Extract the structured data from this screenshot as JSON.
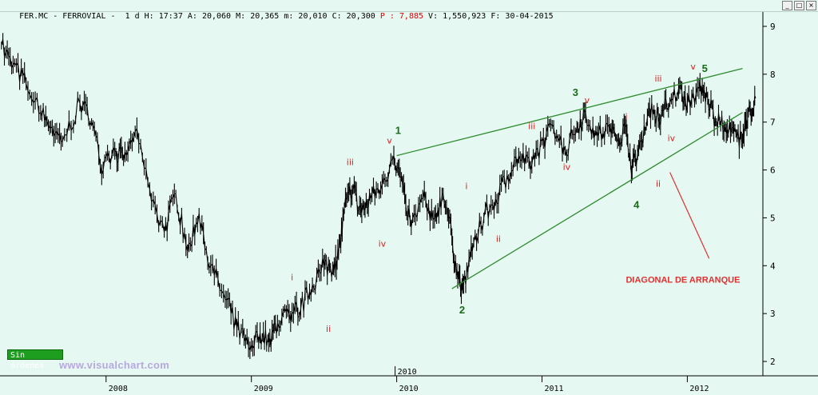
{
  "header": {
    "symbol": "FER.MC",
    "name": "FERROVIAL",
    "timeframe": "1 d",
    "time_label": "H:",
    "time": "17:37",
    "open_label": "A:",
    "open": "20,060",
    "high_label": "M:",
    "high": "20,365",
    "low_label": "m:",
    "low": "20,010",
    "close_label": "C:",
    "close": "20,300",
    "p_label": "P :",
    "p_value": "7,885",
    "volume_label": "V:",
    "volume": "1,550,923",
    "date_label": "F:",
    "date": "30-04-2015"
  },
  "window_buttons": [
    "_",
    "□",
    "×"
  ],
  "orders_badge": "Sin órdenes",
  "watermark": "www.visualchart.com",
  "colors": {
    "background": "#e6f8f2",
    "price": "#000000",
    "trendline": "#2e8b2e",
    "wave_major": "#1a6b1a",
    "wave_minor": "#e02020",
    "annotation_arrow": "#e03030"
  },
  "chart_data": {
    "type": "line",
    "title": "",
    "xlabel": "",
    "ylabel": "",
    "x_ticks": [
      "2008",
      "2009",
      "2010",
      "2011",
      "2012"
    ],
    "x_extra_label": "2010",
    "y_ticks": [
      2,
      3,
      4,
      5,
      6,
      7,
      8,
      9
    ],
    "ylim": [
      1.7,
      9.3
    ],
    "grid": false,
    "series": [
      {
        "values_x": [
          2007.28,
          2007.36,
          2007.45,
          2007.55,
          2007.62,
          2007.7,
          2007.82,
          2007.9,
          2007.98,
          2008.06,
          2008.12,
          2008.2,
          2008.3,
          2008.4,
          2008.48,
          2008.56,
          2008.64,
          2008.72,
          2008.82,
          2008.9,
          2008.98,
          2009.06,
          2009.12,
          2009.18,
          2009.26,
          2009.34,
          2009.42,
          2009.5,
          2009.56,
          2009.6,
          2009.64,
          2009.7,
          2009.76,
          2009.82,
          2009.9,
          2009.98,
          2010.04,
          2010.1,
          2010.18,
          2010.26,
          2010.32,
          2010.38,
          2010.42,
          2010.46,
          2010.52,
          2010.6,
          2010.68,
          2010.76,
          2010.84,
          2010.92,
          2011.0,
          2011.08,
          2011.16,
          2011.24,
          2011.3,
          2011.38,
          2011.46,
          2011.52,
          2011.58,
          2011.62,
          2011.68,
          2011.74,
          2011.8,
          2011.86,
          2011.94,
          2012.0,
          2012.08,
          2012.14,
          2012.2,
          2012.26,
          2012.32,
          2012.38,
          2012.42,
          2012.47
        ],
        "values_y": [
          8.6,
          8.2,
          7.8,
          7.2,
          6.9,
          6.6,
          7.4,
          7.0,
          6.0,
          6.4,
          6.2,
          6.8,
          5.6,
          4.7,
          5.5,
          4.3,
          5.1,
          4.0,
          3.3,
          2.7,
          2.3,
          2.6,
          2.4,
          2.8,
          3.0,
          3.1,
          3.6,
          4.0,
          3.95,
          4.2,
          5.2,
          5.6,
          5.1,
          5.4,
          5.7,
          6.3,
          5.7,
          4.8,
          5.4,
          5.0,
          5.5,
          4.6,
          3.7,
          3.6,
          4.3,
          5.0,
          5.4,
          5.9,
          6.3,
          6.0,
          6.6,
          6.9,
          6.4,
          6.9,
          7.2,
          6.7,
          6.9,
          6.6,
          6.9,
          6.0,
          6.6,
          7.3,
          7.1,
          7.3,
          7.7,
          7.4,
          7.7,
          7.5,
          7.0,
          6.9,
          6.8,
          6.6,
          7.2,
          7.5
        ]
      }
    ],
    "trendlines": [
      {
        "from": [
          2010.0,
          6.3
        ],
        "to": [
          2012.38,
          8.12
        ]
      },
      {
        "from": [
          2010.38,
          3.52
        ],
        "to": [
          2012.38,
          7.2
        ]
      }
    ],
    "wave_labels": [
      {
        "text": "1",
        "x": 2010.01,
        "y": 6.75,
        "kind": "major"
      },
      {
        "text": "2",
        "x": 2010.45,
        "y": 3.0,
        "kind": "major"
      },
      {
        "text": "3",
        "x": 2011.23,
        "y": 7.55,
        "kind": "major"
      },
      {
        "text": "4",
        "x": 2011.65,
        "y": 5.2,
        "kind": "major"
      },
      {
        "text": "5",
        "x": 2012.12,
        "y": 8.05,
        "kind": "major"
      },
      {
        "text": "i",
        "x": 2009.28,
        "y": 3.7,
        "kind": "minor"
      },
      {
        "text": "ii",
        "x": 2009.53,
        "y": 2.62,
        "kind": "minor"
      },
      {
        "text": "iii",
        "x": 2009.68,
        "y": 6.1,
        "kind": "minor"
      },
      {
        "text": "iv",
        "x": 2009.9,
        "y": 4.4,
        "kind": "minor"
      },
      {
        "text": "v",
        "x": 2009.95,
        "y": 6.55,
        "kind": "minor"
      },
      {
        "text": "i",
        "x": 2010.48,
        "y": 5.6,
        "kind": "minor"
      },
      {
        "text": "ii",
        "x": 2010.7,
        "y": 4.5,
        "kind": "minor"
      },
      {
        "text": "iii",
        "x": 2010.93,
        "y": 6.85,
        "kind": "minor"
      },
      {
        "text": "iv",
        "x": 2011.17,
        "y": 6.0,
        "kind": "minor"
      },
      {
        "text": "v",
        "x": 2011.31,
        "y": 7.4,
        "kind": "minor"
      },
      {
        "text": "i",
        "x": 2011.58,
        "y": 7.05,
        "kind": "minor"
      },
      {
        "text": "ii",
        "x": 2011.8,
        "y": 5.65,
        "kind": "minor"
      },
      {
        "text": "iii",
        "x": 2011.8,
        "y": 7.85,
        "kind": "minor"
      },
      {
        "text": "iv",
        "x": 2011.89,
        "y": 6.6,
        "kind": "minor"
      },
      {
        "text": "v",
        "x": 2012.04,
        "y": 8.1,
        "kind": "minor"
      }
    ],
    "annotations": [
      {
        "text": "DIAGONAL DE ARRANQUE",
        "x": 2011.97,
        "y": 3.65,
        "arrow_from": [
          2011.88,
          5.95
        ],
        "arrow_to": [
          2012.15,
          4.15
        ]
      }
    ]
  }
}
